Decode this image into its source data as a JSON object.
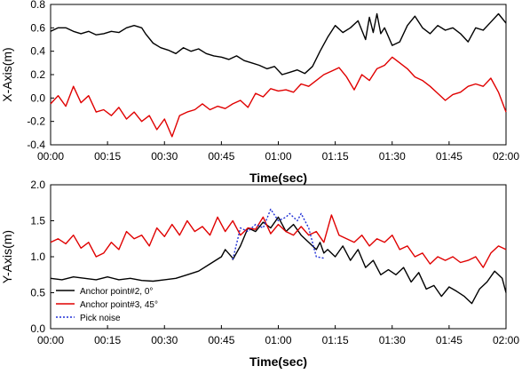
{
  "chart_data": [
    {
      "type": "line",
      "xlabel": "Time(sec)",
      "ylabel": "X-Axis(m)",
      "xlim": [
        "00:00",
        "02:00"
      ],
      "ylim": [
        -0.4,
        0.8
      ],
      "x_tick_labels": [
        "00:00",
        "00:15",
        "00:30",
        "00:45",
        "01:00",
        "01:15",
        "01:30",
        "01:45",
        "02:00"
      ],
      "y_tick_labels": [
        "-0.4",
        "-0.2",
        "0.0",
        "0.2",
        "0.4",
        "0.6",
        "0.8"
      ],
      "y_ticks": [
        -0.4,
        -0.2,
        0.0,
        0.2,
        0.4,
        0.6,
        0.8
      ],
      "colors": {
        "anchor2": "#000000",
        "anchor3": "#e00000"
      },
      "series": [
        {
          "key": "anchor2",
          "x": [
            "00:00",
            "00:02",
            "00:04",
            "00:06",
            "00:08",
            "00:10",
            "00:12",
            "00:14",
            "00:16",
            "00:18",
            "00:20",
            "00:22",
            "00:24",
            "00:25",
            "00:27",
            "00:29",
            "00:31",
            "00:33",
            "00:35",
            "00:37",
            "00:39",
            "00:41",
            "00:43",
            "00:45",
            "00:47",
            "00:49",
            "00:51",
            "00:53",
            "00:55",
            "00:57",
            "00:59",
            "01:01",
            "01:03",
            "01:05",
            "01:07",
            "01:09",
            "01:11",
            "01:13",
            "01:15",
            "01:17",
            "01:19",
            "01:21",
            "01:23",
            "01:24",
            "01:25",
            "01:26",
            "01:27",
            "01:28",
            "01:30",
            "01:32",
            "01:34",
            "01:36",
            "01:38",
            "01:40",
            "01:42",
            "01:44",
            "01:46",
            "01:48",
            "01:50",
            "01:52",
            "01:54",
            "01:56",
            "01:58",
            "02:00"
          ],
          "values": [
            0.57,
            0.6,
            0.6,
            0.57,
            0.55,
            0.57,
            0.54,
            0.55,
            0.57,
            0.56,
            0.6,
            0.62,
            0.6,
            0.55,
            0.47,
            0.43,
            0.41,
            0.38,
            0.43,
            0.4,
            0.42,
            0.38,
            0.36,
            0.35,
            0.33,
            0.36,
            0.32,
            0.3,
            0.28,
            0.25,
            0.27,
            0.2,
            0.22,
            0.24,
            0.21,
            0.27,
            0.4,
            0.52,
            0.62,
            0.56,
            0.6,
            0.66,
            0.5,
            0.69,
            0.56,
            0.72,
            0.55,
            0.6,
            0.45,
            0.48,
            0.62,
            0.7,
            0.6,
            0.55,
            0.62,
            0.58,
            0.6,
            0.55,
            0.48,
            0.6,
            0.58,
            0.65,
            0.72,
            0.64
          ]
        },
        {
          "key": "anchor3",
          "x": [
            "00:00",
            "00:02",
            "00:04",
            "00:06",
            "00:08",
            "00:10",
            "00:12",
            "00:14",
            "00:16",
            "00:18",
            "00:20",
            "00:22",
            "00:24",
            "00:26",
            "00:28",
            "00:30",
            "00:32",
            "00:34",
            "00:36",
            "00:38",
            "00:40",
            "00:42",
            "00:44",
            "00:46",
            "00:48",
            "00:50",
            "00:52",
            "00:54",
            "00:56",
            "00:58",
            "01:00",
            "01:02",
            "01:04",
            "01:06",
            "01:08",
            "01:10",
            "01:12",
            "01:14",
            "01:16",
            "01:18",
            "01:20",
            "01:22",
            "01:24",
            "01:26",
            "01:28",
            "01:30",
            "01:32",
            "01:34",
            "01:36",
            "01:38",
            "01:40",
            "01:42",
            "01:44",
            "01:46",
            "01:48",
            "01:50",
            "01:52",
            "01:54",
            "01:56",
            "01:58",
            "02:00"
          ],
          "values": [
            -0.05,
            0.02,
            -0.07,
            0.1,
            -0.04,
            0.02,
            -0.12,
            -0.1,
            -0.15,
            -0.08,
            -0.18,
            -0.12,
            -0.2,
            -0.15,
            -0.27,
            -0.18,
            -0.33,
            -0.15,
            -0.12,
            -0.1,
            -0.05,
            -0.1,
            -0.07,
            -0.09,
            -0.05,
            -0.02,
            -0.08,
            0.04,
            0.01,
            0.08,
            0.06,
            0.07,
            0.05,
            0.12,
            0.1,
            0.15,
            0.2,
            0.23,
            0.26,
            0.18,
            0.07,
            0.2,
            0.15,
            0.25,
            0.28,
            0.35,
            0.3,
            0.25,
            0.18,
            0.15,
            0.1,
            0.04,
            -0.02,
            0.03,
            0.05,
            0.1,
            0.12,
            0.1,
            0.17,
            0.05,
            -0.12
          ]
        }
      ]
    },
    {
      "type": "line",
      "xlabel": "Time(sec)",
      "ylabel": "Y-Axis(m)",
      "xlim": [
        "00:00",
        "02:00"
      ],
      "ylim": [
        0.0,
        2.0
      ],
      "x_tick_labels": [
        "00:00",
        "00:15",
        "00:30",
        "00:45",
        "01:00",
        "01:15",
        "01:30",
        "01:45",
        "02:00"
      ],
      "y_tick_labels": [
        "0.0",
        "0.5",
        "1.0",
        "1.5",
        "2.0"
      ],
      "y_ticks": [
        0.0,
        0.5,
        1.0,
        1.5,
        2.0
      ],
      "legend": {
        "position": "bottom-left",
        "entries": [
          "Anchor point#2, 0°",
          "Anchor point#3, 45°",
          "Pick noise"
        ]
      },
      "colors": {
        "anchor2": "#000000",
        "anchor3": "#e00000",
        "noise": "#1f2fd6"
      },
      "series": [
        {
          "key": "anchor2",
          "name": "Anchor point#2, 0°",
          "x": [
            "00:00",
            "00:03",
            "00:06",
            "00:09",
            "00:12",
            "00:15",
            "00:18",
            "00:21",
            "00:24",
            "00:27",
            "00:30",
            "00:33",
            "00:36",
            "00:39",
            "00:42",
            "00:45",
            "00:46",
            "00:48",
            "00:48",
            "00:50",
            "00:52",
            "00:54",
            "00:56",
            "00:58",
            "01:00",
            "01:02",
            "01:04",
            "01:06",
            "01:08",
            "01:10",
            "01:11",
            "01:12",
            "01:13",
            "01:15",
            "01:17",
            "01:19",
            "01:21",
            "01:23",
            "01:25",
            "01:27",
            "01:29",
            "01:31",
            "01:33",
            "01:35",
            "01:37",
            "01:39",
            "01:41",
            "01:43",
            "01:45",
            "01:47",
            "01:49",
            "01:51",
            "01:53",
            "01:55",
            "01:57",
            "01:59",
            "02:00"
          ],
          "values": [
            0.7,
            0.68,
            0.72,
            0.7,
            0.68,
            0.72,
            0.68,
            0.7,
            0.67,
            0.66,
            0.68,
            0.7,
            0.75,
            0.8,
            0.9,
            1.0,
            1.1,
            0.98,
            0.96,
            1.15,
            1.4,
            1.35,
            1.48,
            1.4,
            1.55,
            1.35,
            1.45,
            1.3,
            1.2,
            1.1,
            1.2,
            1.05,
            1.1,
            1.0,
            1.15,
            0.95,
            1.1,
            0.85,
            0.95,
            0.75,
            0.82,
            0.75,
            0.85,
            0.65,
            0.78,
            0.55,
            0.6,
            0.45,
            0.58,
            0.52,
            0.45,
            0.35,
            0.55,
            0.65,
            0.8,
            0.7,
            0.5
          ]
        },
        {
          "key": "anchor3",
          "name": "Anchor point#3, 45°",
          "x": [
            "00:00",
            "00:02",
            "00:04",
            "00:06",
            "00:08",
            "00:10",
            "00:12",
            "00:14",
            "00:16",
            "00:18",
            "00:20",
            "00:22",
            "00:24",
            "00:26",
            "00:28",
            "00:30",
            "00:32",
            "00:34",
            "00:36",
            "00:38",
            "00:40",
            "00:42",
            "00:44",
            "00:46",
            "00:48",
            "00:50",
            "00:52",
            "00:54",
            "00:56",
            "00:58",
            "01:00",
            "01:02",
            "01:04",
            "01:06",
            "01:08",
            "01:10",
            "01:12",
            "01:14",
            "01:16",
            "01:18",
            "01:20",
            "01:22",
            "01:24",
            "01:26",
            "01:28",
            "01:30",
            "01:32",
            "01:34",
            "01:36",
            "01:38",
            "01:40",
            "01:42",
            "01:44",
            "01:46",
            "01:48",
            "01:50",
            "01:52",
            "01:54",
            "01:56",
            "01:58",
            "02:00"
          ],
          "values": [
            1.2,
            1.25,
            1.18,
            1.3,
            1.12,
            1.2,
            1.0,
            1.05,
            1.2,
            1.1,
            1.35,
            1.25,
            1.3,
            1.15,
            1.4,
            1.28,
            1.45,
            1.3,
            1.5,
            1.35,
            1.42,
            1.3,
            1.55,
            1.35,
            1.5,
            1.3,
            1.4,
            1.38,
            1.55,
            1.32,
            1.45,
            1.35,
            1.3,
            1.42,
            1.3,
            1.35,
            1.2,
            1.58,
            1.3,
            1.25,
            1.2,
            1.3,
            1.15,
            1.25,
            1.2,
            1.3,
            1.1,
            1.15,
            1.0,
            1.05,
            0.9,
            1.0,
            0.95,
            1.0,
            0.92,
            0.95,
            1.0,
            0.85,
            1.05,
            1.15,
            1.1
          ]
        },
        {
          "key": "noise",
          "name": "Pick noise",
          "x": [
            "00:48",
            "00:50",
            "00:52",
            "00:54",
            "00:56",
            "00:58",
            "01:00",
            "01:02",
            "01:03",
            "01:05",
            "01:06",
            "01:08",
            "01:10",
            "01:12"
          ],
          "values": [
            0.96,
            1.4,
            1.35,
            1.45,
            1.4,
            1.66,
            1.5,
            1.55,
            1.6,
            1.5,
            1.6,
            1.4,
            1.0,
            0.98
          ]
        }
      ]
    }
  ]
}
